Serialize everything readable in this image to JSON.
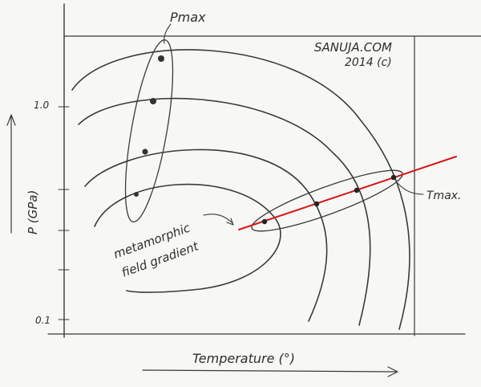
{
  "labels": {
    "y_axis": "P (GPa)",
    "x_axis": "Temperature (°)",
    "p_max": "Pmax",
    "t_max": "Tmax.",
    "gradient_line1": "metamorphic",
    "gradient_line2": "field gradient",
    "credit_line1": "SANUJA.COM",
    "credit_line2": "2014 (c)"
  },
  "y_ticks": [
    {
      "label": "1.0"
    },
    {
      "label": "0.1"
    }
  ],
  "colors": {
    "pencil": "#3a3a3a",
    "light_pencil": "#9a9a9a",
    "gradient_line": "#d01818",
    "paper": "#f7f7f5"
  }
}
